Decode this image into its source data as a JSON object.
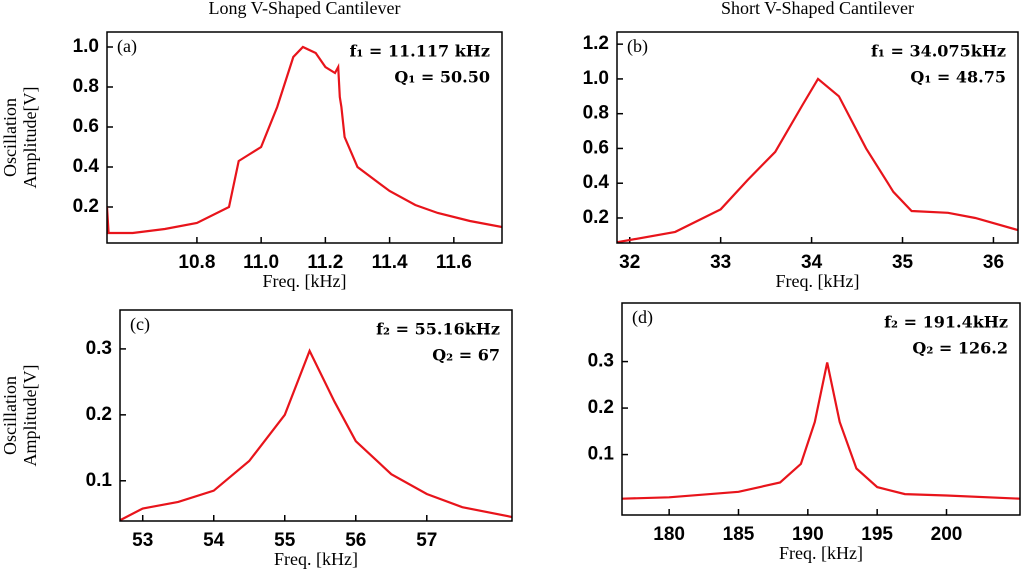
{
  "chart_data": [
    {
      "type": "line",
      "title": "Long V-Shaped Cantilever",
      "panel_label": "(a)",
      "annotations": [
        "f₁ = 11.117 kHz",
        "Q₁ = 50.50"
      ],
      "xlabel": "Freq. [kHz]",
      "ylabel": [
        "Oscillation",
        "Amplitude[V]"
      ],
      "color": "#e8141b",
      "x": [
        10.52,
        10.525,
        10.6,
        10.7,
        10.8,
        10.9,
        10.93,
        10.96,
        11.0,
        11.05,
        11.1,
        11.13,
        11.17,
        11.2,
        11.23,
        11.24,
        11.245,
        11.25,
        11.26,
        11.3,
        11.4,
        11.48,
        11.55,
        11.65,
        11.75
      ],
      "values": [
        0.2,
        0.07,
        0.07,
        0.09,
        0.12,
        0.2,
        0.43,
        0.46,
        0.5,
        0.7,
        0.95,
        1.0,
        0.97,
        0.9,
        0.87,
        0.9,
        0.75,
        0.7,
        0.55,
        0.4,
        0.28,
        0.21,
        0.17,
        0.13,
        0.1
      ],
      "xlim": [
        10.52,
        11.75
      ],
      "ylim": [
        0.02,
        1.075
      ],
      "xticks": [
        10.8,
        {
          "value": 11,
          "label": "11.0"
        },
        11.2,
        11.4,
        11.6
      ],
      "yticks": [
        0.2,
        0.4,
        0.6,
        0.8,
        {
          "value": 1,
          "label": "1.0"
        }
      ]
    },
    {
      "type": "line",
      "title": "Short V-Shaped Cantilever",
      "panel_label": "(b)",
      "annotations": [
        "f₁ = 34.075kHz",
        "Q₁ = 48.75"
      ],
      "xlabel": "Freq. [kHz]",
      "color": "#e8141b",
      "x": [
        31.86,
        32.5,
        33,
        33.3,
        33.6,
        33.9,
        34.07,
        34.3,
        34.6,
        34.9,
        35.1,
        35.5,
        35.8,
        36.27
      ],
      "values": [
        0.06,
        0.12,
        0.25,
        0.42,
        0.58,
        0.85,
        1.0,
        0.9,
        0.6,
        0.35,
        0.24,
        0.23,
        0.2,
        0.13
      ],
      "xlim": [
        31.86,
        36.27
      ],
      "ylim": [
        0.056,
        1.27
      ],
      "xticks": [
        32,
        33,
        34,
        35,
        36
      ],
      "yticks": [
        0.2,
        0.4,
        0.6,
        0.8,
        {
          "value": 1,
          "label": "1.0"
        },
        1.2
      ]
    },
    {
      "type": "line",
      "panel_label": "(c)",
      "annotations": [
        "f₂ = 55.16kHz",
        "Q₂ = 67"
      ],
      "xlabel": "Freq. [kHz]",
      "ylabel": [
        "Oscillation",
        "Amplitude[V]"
      ],
      "color": "#e8141b",
      "x": [
        52.68,
        53,
        53.5,
        54,
        54.5,
        55,
        55.35,
        55.7,
        56,
        56.5,
        57,
        57.5,
        58.2
      ],
      "values": [
        0.04,
        0.058,
        0.068,
        0.085,
        0.13,
        0.2,
        0.297,
        0.22,
        0.16,
        0.11,
        0.08,
        0.06,
        0.045
      ],
      "xlim": [
        52.68,
        58.2
      ],
      "ylim": [
        0.039,
        0.359
      ],
      "xticks": [
        53,
        54,
        55,
        56,
        57
      ],
      "yticks": [
        0.1,
        0.2,
        0.3
      ]
    },
    {
      "type": "line",
      "panel_label": "(d)",
      "annotations": [
        "f₂ = 191.4kHz",
        "Q₂ = 126.2"
      ],
      "xlabel": "Freq. [kHz]",
      "color": "#e8141b",
      "x": [
        176.6,
        180,
        185,
        188,
        189.5,
        190.5,
        191.4,
        192.3,
        193.5,
        195,
        197,
        200,
        205.3
      ],
      "values": [
        0.005,
        0.008,
        0.02,
        0.04,
        0.08,
        0.17,
        0.298,
        0.17,
        0.07,
        0.03,
        0.015,
        0.012,
        0.005
      ],
      "xlim": [
        176.6,
        205.3
      ],
      "ylim": [
        -0.03,
        0.426
      ],
      "xticks": [
        180,
        185,
        190,
        195,
        200
      ],
      "yticks": [
        0.1,
        0.2,
        0.3
      ]
    }
  ]
}
